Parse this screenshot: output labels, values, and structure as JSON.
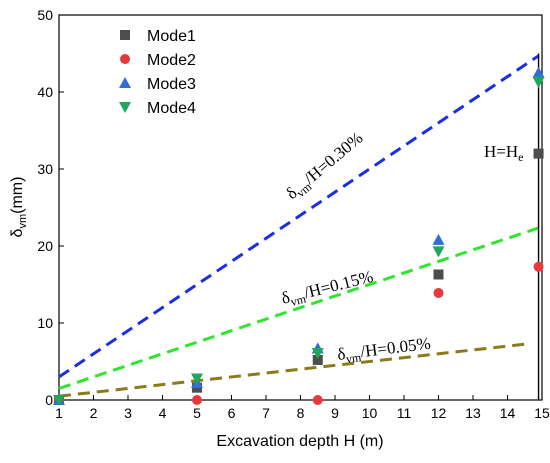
{
  "chart_data": {
    "type": "scatter",
    "xlabel": "Excavation depth H (m)",
    "ylabel": {
      "main": "δ",
      "sub": "vm",
      "rest": "(mm)"
    },
    "xlim": [
      1,
      15
    ],
    "ylim": [
      0,
      50
    ],
    "xticks": [
      1,
      2,
      3,
      4,
      5,
      6,
      7,
      8,
      9,
      10,
      11,
      12,
      13,
      14,
      15
    ],
    "yticks": [
      0,
      10,
      20,
      30,
      40,
      50
    ],
    "grid": false,
    "legend_position": "top-left",
    "series": [
      {
        "name": "Mode1",
        "marker": "square",
        "color": "#4d4d4d",
        "points": [
          {
            "x": 1,
            "y": 0
          },
          {
            "x": 5,
            "y": 1.6
          },
          {
            "x": 8.5,
            "y": 5.2
          },
          {
            "x": 12,
            "y": 16.3
          },
          {
            "x": 14.9,
            "y": 32
          }
        ]
      },
      {
        "name": "Mode2",
        "marker": "circle",
        "color": "#e8383d",
        "points": [
          {
            "x": 1,
            "y": 0
          },
          {
            "x": 5,
            "y": 0
          },
          {
            "x": 8.5,
            "y": 0
          },
          {
            "x": 12,
            "y": 13.9
          },
          {
            "x": 14.9,
            "y": 17.3
          }
        ]
      },
      {
        "name": "Mode3",
        "marker": "triangle-up",
        "color": "#2f6fd6",
        "points": [
          {
            "x": 1,
            "y": 0
          },
          {
            "x": 5,
            "y": 2.2
          },
          {
            "x": 8.5,
            "y": 6.7
          },
          {
            "x": 12,
            "y": 20.8
          },
          {
            "x": 14.9,
            "y": 42.5
          }
        ]
      },
      {
        "name": "Mode4",
        "marker": "triangle-down",
        "color": "#1fa85a",
        "points": [
          {
            "x": 1,
            "y": 0
          },
          {
            "x": 5,
            "y": 2.8
          },
          {
            "x": 8.5,
            "y": 6.1
          },
          {
            "x": 12,
            "y": 19.3
          },
          {
            "x": 14.9,
            "y": 41.3
          }
        ]
      }
    ],
    "reference_lines": [
      {
        "ratio_label": "/H=0.30%",
        "ratio": 0.003,
        "color": "#1a2ee6",
        "x_range": [
          1,
          14.9
        ]
      },
      {
        "ratio_label": "/H=0.15%",
        "ratio": 0.0015,
        "color": "#2ee62e",
        "x_range": [
          1,
          14.9
        ]
      },
      {
        "ratio_label": "/H=0.05%",
        "ratio": 0.0005,
        "color": "#8a7a1a",
        "x_range": [
          1,
          14.5
        ]
      }
    ],
    "reference_line_symbol": {
      "main": "δ",
      "sub": "vm"
    },
    "vertical_marker": {
      "x": 14.9,
      "y_range": [
        0,
        45
      ],
      "color": "#000000"
    },
    "annotation": {
      "main": "H=H",
      "sub": "e"
    }
  }
}
